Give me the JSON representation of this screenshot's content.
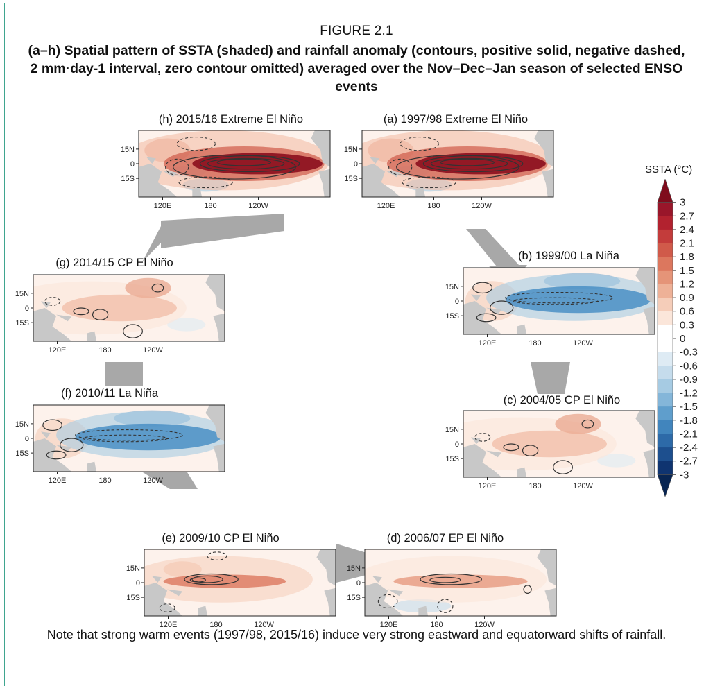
{
  "figure": {
    "label": "FIGURE 2.1",
    "title": "(a–h) Spatial pattern of SSTA (shaded) and rainfall anomaly (contours, positive solid, negative dashed, 2 mm·day-1 interval, zero contour omitted) averaged over the Nov–Dec–Jan season of selected ENSO events",
    "note": "Note that strong warm events (1997/98, 2015/16) induce very strong eastward and equatorward shifts of rainfall."
  },
  "axis_labels": {
    "lat": [
      "15N",
      "0",
      "15S"
    ],
    "lon": [
      "120E",
      "180",
      "120W"
    ]
  },
  "panels": [
    {
      "id": "h",
      "title": "(h) 2015/16 Extreme El Niño",
      "type": "extreme"
    },
    {
      "id": "a",
      "title": "(a) 1997/98 Extreme El Niño",
      "type": "extreme"
    },
    {
      "id": "b",
      "title": "(b) 1999/00 La Niña",
      "type": "lanina"
    },
    {
      "id": "c",
      "title": "(c) 2004/05 CP El Niño",
      "type": "cp_weak"
    },
    {
      "id": "d",
      "title": "(d) 2006/07 EP El Niño",
      "type": "ep"
    },
    {
      "id": "e",
      "title": "(e) 2009/10 CP El Niño",
      "type": "cp"
    },
    {
      "id": "f",
      "title": "(f) 2010/11 La Niña",
      "type": "lanina"
    },
    {
      "id": "g",
      "title": "(g) 2014/15 CP El Niño",
      "type": "cp_weak"
    }
  ],
  "colorbar": {
    "title": "SSTA (°C)",
    "labels": [
      "3",
      "2.7",
      "2.4",
      "2.1",
      "1.8",
      "1.5",
      "1.2",
      "0.9",
      "0.6",
      "0.3",
      "0",
      "-0.3",
      "-0.6",
      "-0.9",
      "-1.2",
      "-1.5",
      "-1.8",
      "-2.1",
      "-2.4",
      "-2.7",
      "-3"
    ],
    "colors_top_to_bottom": [
      "#7f0c1c",
      "#99162a",
      "#b2222f",
      "#c33c3b",
      "#d05a4a",
      "#dc775e",
      "#e59478",
      "#eeb197",
      "#f5cdb9",
      "#fbe6da",
      "#ffffff",
      "#ffffff",
      "#deebf4",
      "#c5dcec",
      "#a6cbe3",
      "#84b6d9",
      "#5f9ecc",
      "#4185bd",
      "#2d6aa8",
      "#1d4f8e",
      "#0f3470",
      "#082552"
    ]
  }
}
